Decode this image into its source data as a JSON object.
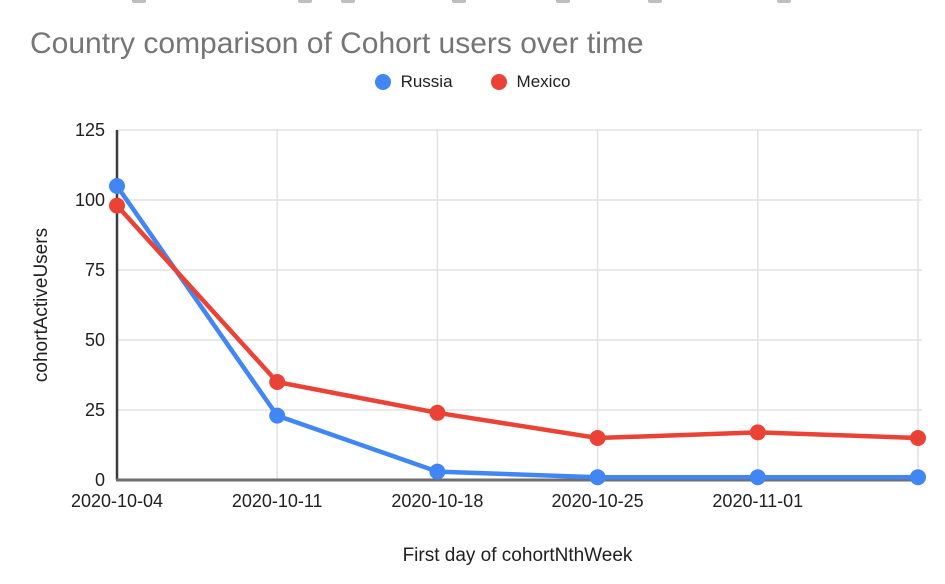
{
  "chart_data": {
    "type": "line",
    "title": "Country comparison of Cohort users over time",
    "xlabel": "First day of cohortNthWeek",
    "ylabel": "cohortActiveUsers",
    "categories": [
      "2020-10-04",
      "2020-10-11",
      "2020-10-18",
      "2020-10-25",
      "2020-11-01",
      ""
    ],
    "y_ticks": [
      0,
      25,
      50,
      75,
      100,
      125
    ],
    "ylim": [
      0,
      125
    ],
    "grid": true,
    "legend_position": "top-center",
    "series": [
      {
        "name": "Russia",
        "color": "#4285F4",
        "values": [
          105,
          23,
          3,
          1,
          1,
          1
        ]
      },
      {
        "name": "Mexico",
        "color": "#EA4335",
        "values": [
          98,
          35,
          24,
          15,
          17,
          15
        ]
      }
    ],
    "colors": {
      "title_text": "#757575",
      "tick_text": "#212121",
      "gridline": "#e2e2e2",
      "y_axis_line": "#3c3c3c",
      "x_axis_line": "#6e6e6e",
      "background": "#ffffff"
    }
  },
  "artifacts": {
    "top_crop_marks_x": [
      132,
      298,
      341,
      452,
      556,
      648,
      777
    ]
  }
}
